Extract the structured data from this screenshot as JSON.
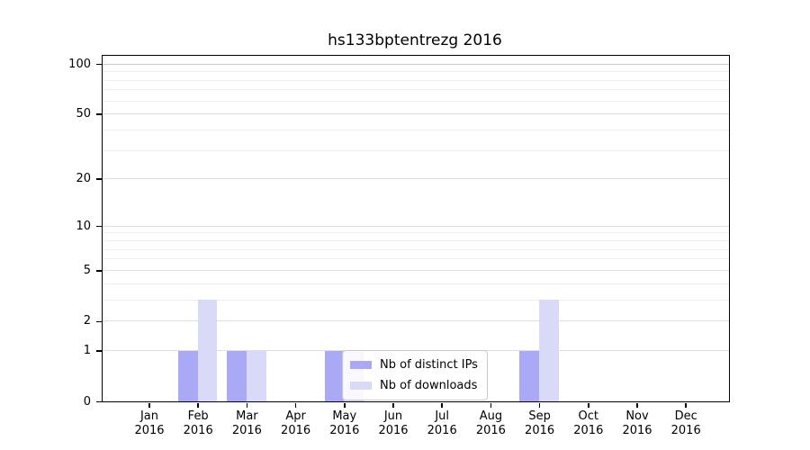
{
  "figure": {
    "background": "#ffffff"
  },
  "chart_data": {
    "type": "bar",
    "title": "hs133bptentrezg 2016",
    "scale": "log1p",
    "categories": [
      [
        "Jan",
        "2016"
      ],
      [
        "Feb",
        "2016"
      ],
      [
        "Mar",
        "2016"
      ],
      [
        "Apr",
        "2016"
      ],
      [
        "May",
        "2016"
      ],
      [
        "Jun",
        "2016"
      ],
      [
        "Jul",
        "2016"
      ],
      [
        "Aug",
        "2016"
      ],
      [
        "Sep",
        "2016"
      ],
      [
        "Oct",
        "2016"
      ],
      [
        "Nov",
        "2016"
      ],
      [
        "Dec",
        "2016"
      ]
    ],
    "series": [
      {
        "name": "Nb of distinct IPs",
        "color": "#a9a9f5",
        "values": [
          0,
          1,
          1,
          0,
          1,
          0,
          0,
          0,
          1,
          0,
          0,
          0
        ]
      },
      {
        "name": "Nb of downloads",
        "color": "#d9d9f8",
        "values": [
          0,
          3,
          1,
          0,
          1,
          0,
          0,
          0,
          3,
          0,
          0,
          0
        ]
      }
    ],
    "yticks": [
      0,
      1,
      2,
      5,
      10,
      20,
      50,
      100
    ],
    "grid_values": [
      1,
      2,
      3,
      4,
      5,
      6,
      7,
      8,
      9,
      10,
      20,
      30,
      40,
      50,
      60,
      70,
      80,
      90,
      100
    ],
    "ylim": [
      0,
      112
    ],
    "xlabel": "",
    "ylabel": "",
    "grid": "on",
    "legend_position": "lower center-left inside plot",
    "colors": {
      "grid_minor": "#efefef",
      "grid_major": "#dedede",
      "grid_top": "#c9c9c9",
      "axis": "#000000",
      "legend_border": "#c9c9c9"
    }
  }
}
